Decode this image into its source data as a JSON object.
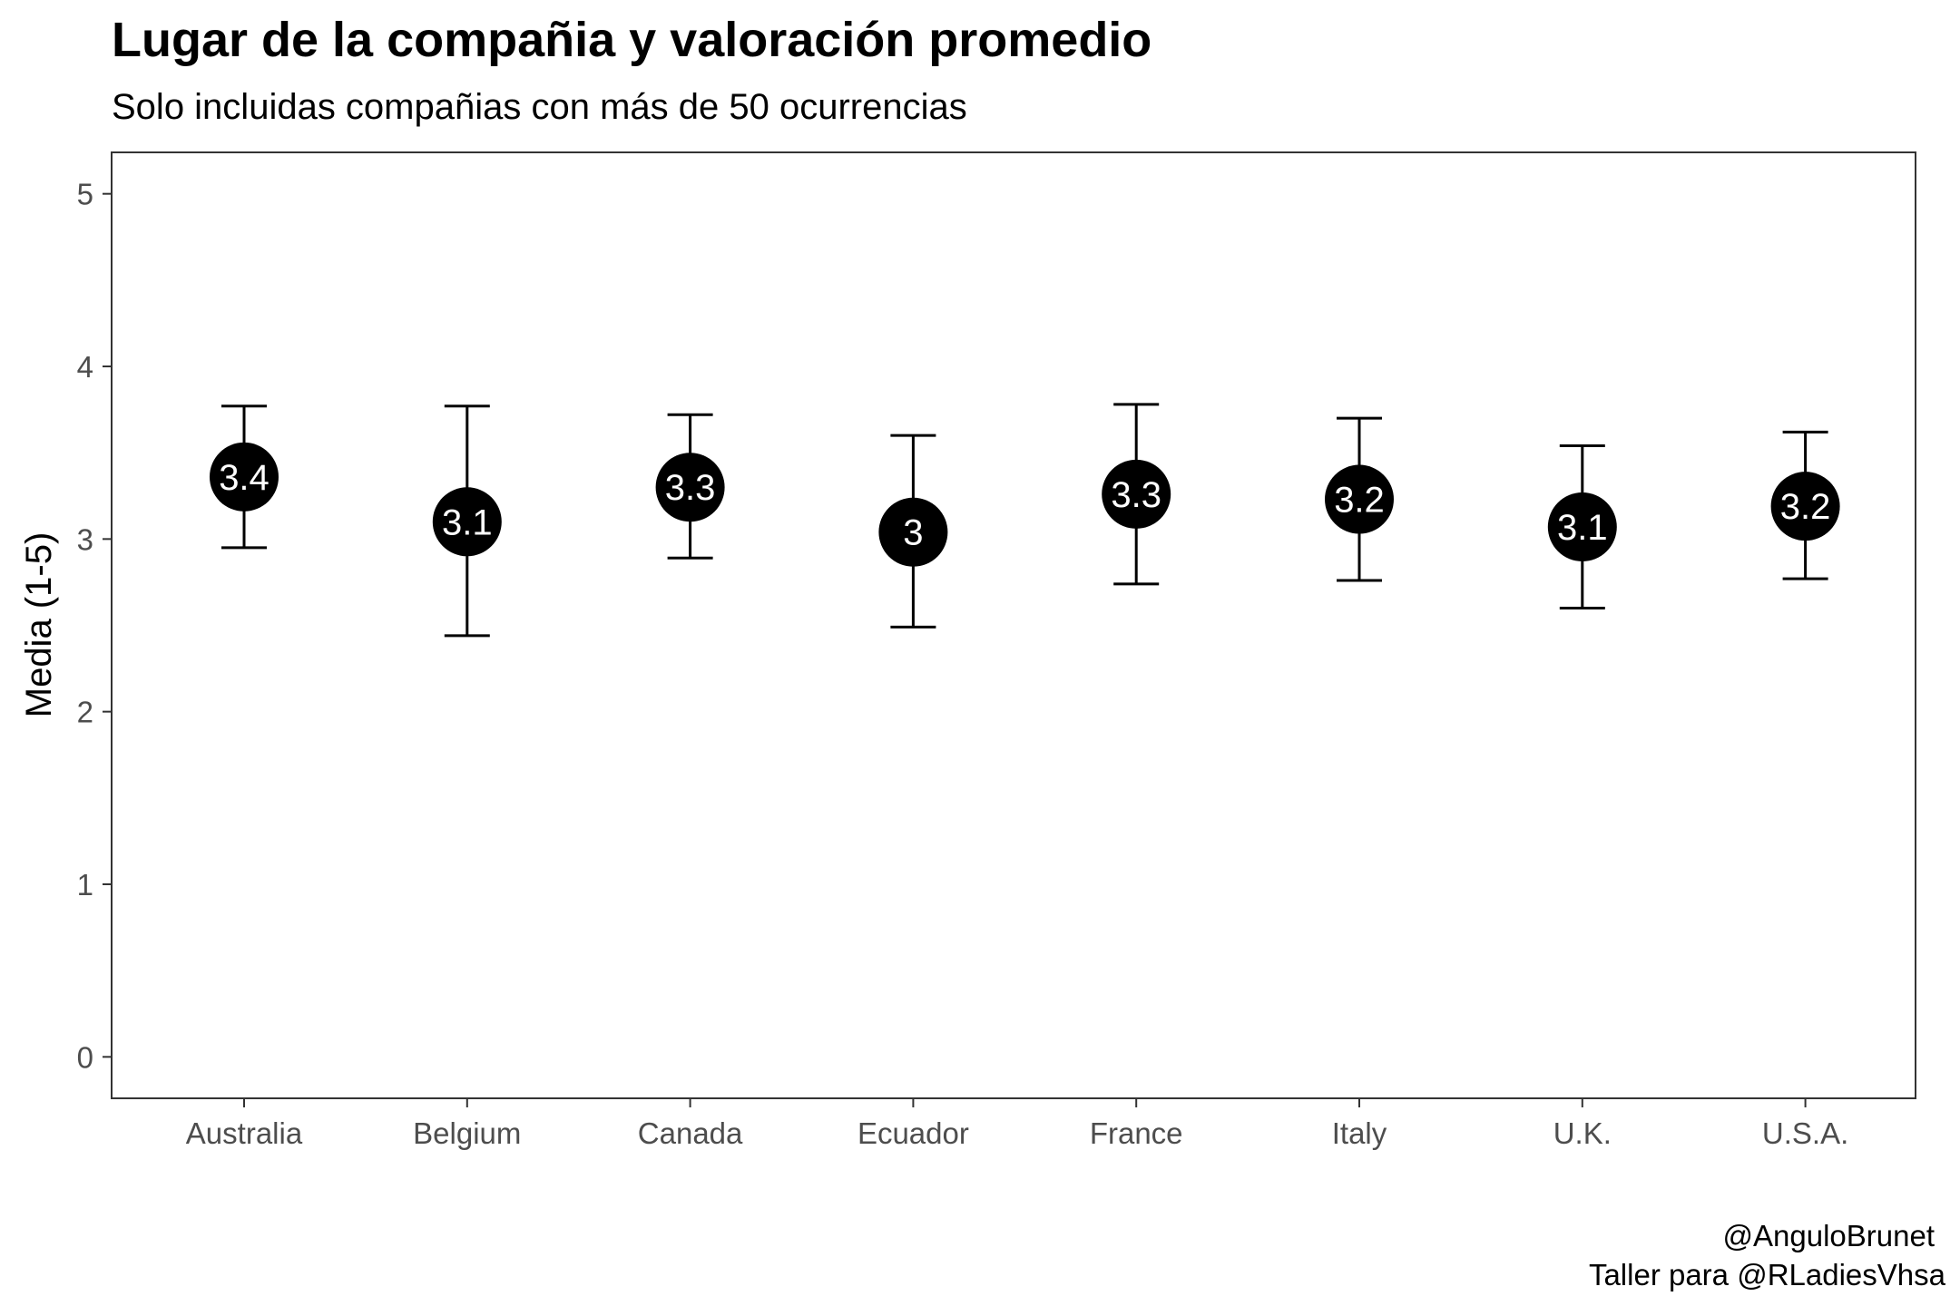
{
  "chart_data": {
    "type": "scatter",
    "title": "Lugar de la compañia y valoración promedio",
    "subtitle": "Solo incluidas compañias con más de 50 ocurrencias",
    "ylabel": "Media (1-5)",
    "xlabel": "",
    "ylim": [
      -0.24,
      5.24
    ],
    "yticks": [
      "0",
      "1",
      "2",
      "3",
      "4",
      "5"
    ],
    "categories": [
      "Australia",
      "Belgium",
      "Canada",
      "Ecuador",
      "France",
      "Italy",
      "U.K.",
      "U.S.A."
    ],
    "means": [
      3.36,
      3.1,
      3.3,
      3.04,
      3.26,
      3.23,
      3.07,
      3.19
    ],
    "labels": [
      "3.4",
      "3.1",
      "3.3",
      "3",
      "3.3",
      "3.2",
      "3.1",
      "3.2"
    ],
    "lower": [
      2.95,
      2.44,
      2.89,
      2.49,
      2.74,
      2.76,
      2.6,
      2.77
    ],
    "upper": [
      3.77,
      3.77,
      3.72,
      3.6,
      3.78,
      3.7,
      3.54,
      3.62
    ],
    "grid": false,
    "legend": "none",
    "caption": [
      "@AnguloBrunet",
      "Taller para @RLadiesVhsa"
    ],
    "point_color": "#000000",
    "label_color": "#ffffff"
  }
}
